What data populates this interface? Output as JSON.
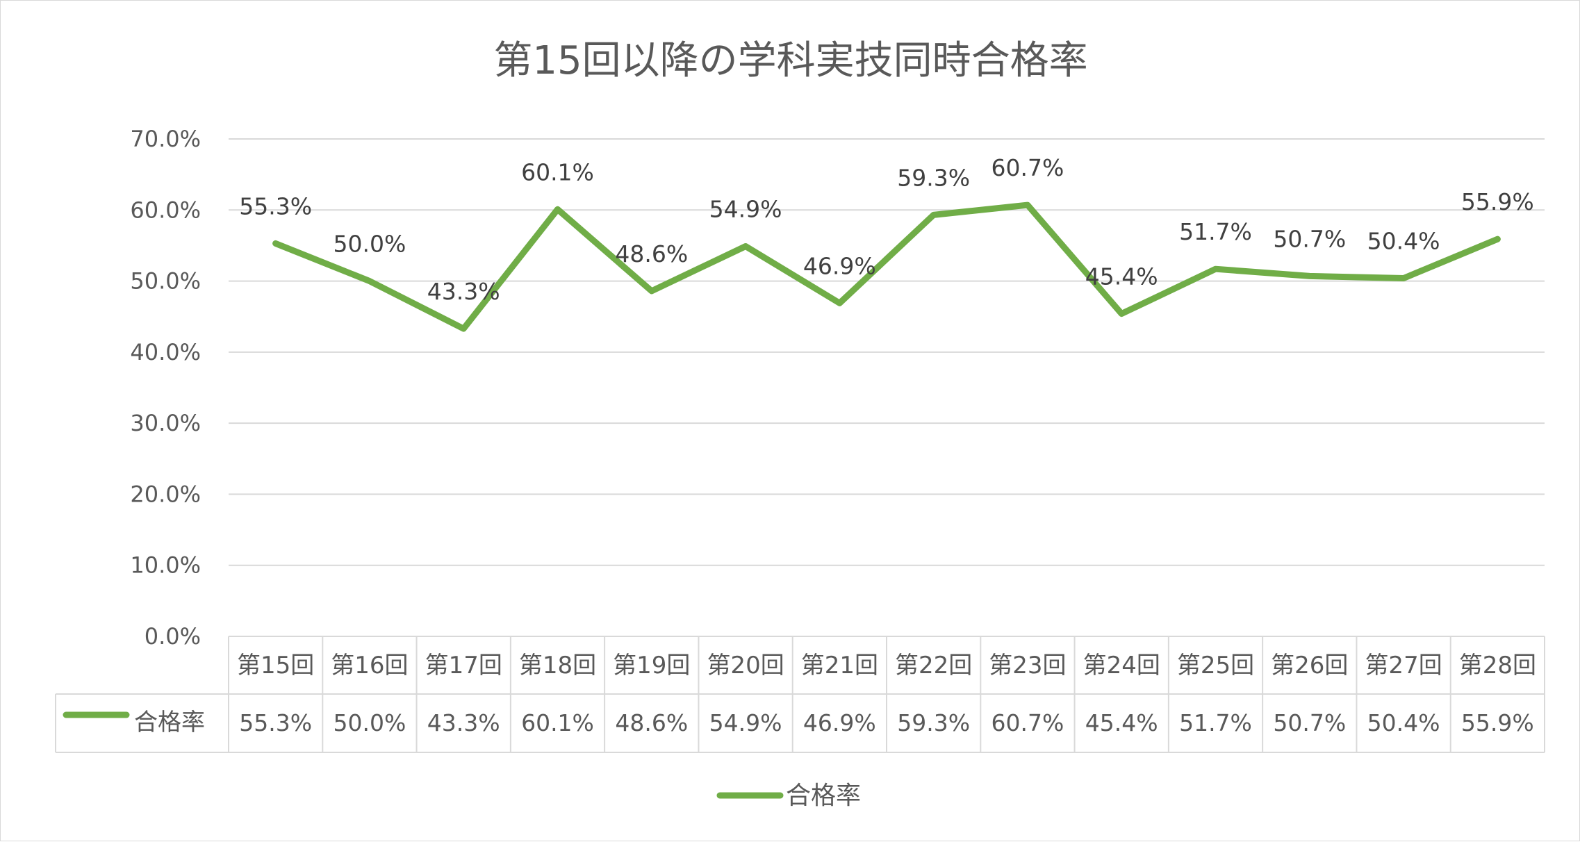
{
  "chart_data": {
    "type": "line",
    "title": "第15回以降の学科実技同時合格率",
    "categories": [
      "第15回",
      "第16回",
      "第17回",
      "第18回",
      "第19回",
      "第20回",
      "第21回",
      "第22回",
      "第23回",
      "第24回",
      "第25回",
      "第26回",
      "第27回",
      "第28回"
    ],
    "series": [
      {
        "name": "合格率",
        "values": [
          55.3,
          50.0,
          43.3,
          60.1,
          48.6,
          54.9,
          46.9,
          59.3,
          60.7,
          45.4,
          51.7,
          50.7,
          50.4,
          55.9
        ],
        "labels": [
          "55.3%",
          "50.0%",
          "43.3%",
          "60.1%",
          "48.6%",
          "54.9%",
          "46.9%",
          "59.3%",
          "60.7%",
          "45.4%",
          "51.7%",
          "50.7%",
          "50.4%",
          "55.9%"
        ],
        "color": "#70ad47"
      }
    ],
    "y_ticks": [
      "0.0%",
      "10.0%",
      "20.0%",
      "30.0%",
      "40.0%",
      "50.0%",
      "60.0%",
      "70.0%"
    ],
    "ylim": [
      0,
      70
    ],
    "grid": true,
    "legend_position": "bottom",
    "data_table": true
  }
}
